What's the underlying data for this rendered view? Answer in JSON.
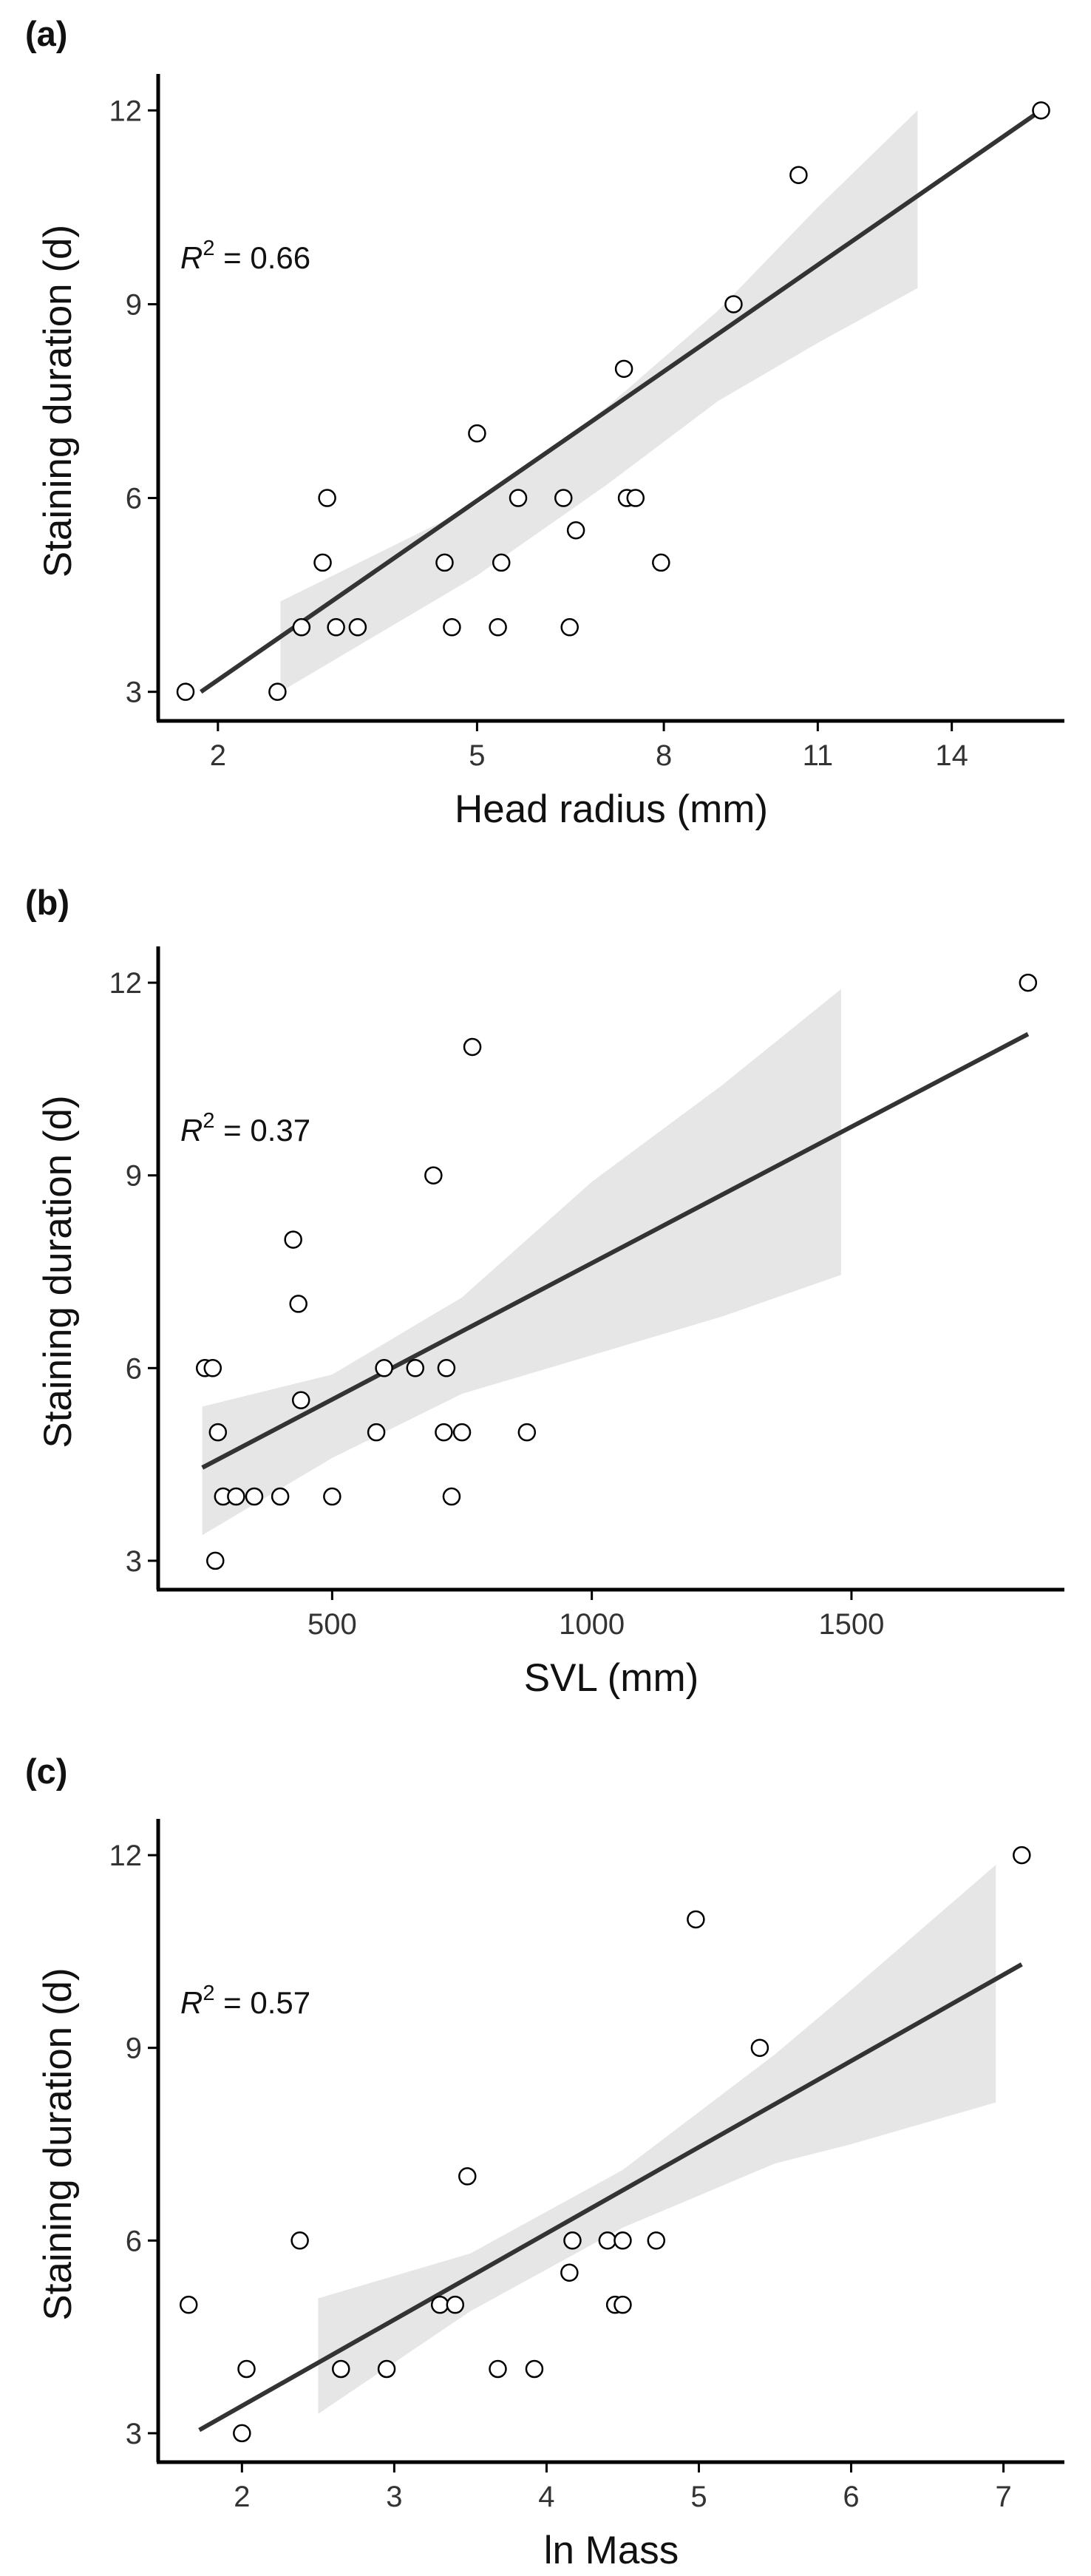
{
  "chart_data": [
    {
      "type": "scatter",
      "panel_label": "(a)",
      "xlabel": "Head radius (mm)",
      "ylabel": "Staining duration (d)",
      "x_scale": "sqrt",
      "xlim": [
        1.5,
        16.8
      ],
      "ylim": [
        2.55,
        12.45
      ],
      "xticks": [
        2,
        5,
        8,
        11,
        14
      ],
      "yticks": [
        3,
        6,
        9,
        12
      ],
      "annotation": {
        "r": "R",
        "sup": "2",
        "rest": " = 0.66"
      },
      "points": [
        {
          "x": 1.72,
          "y": 3
        },
        {
          "x": 2.57,
          "y": 3
        },
        {
          "x": 2.82,
          "y": 4
        },
        {
          "x": 3.05,
          "y": 5
        },
        {
          "x": 3.1,
          "y": 6
        },
        {
          "x": 3.2,
          "y": 4
        },
        {
          "x": 3.45,
          "y": 4
        },
        {
          "x": 4.55,
          "y": 5
        },
        {
          "x": 4.65,
          "y": 4
        },
        {
          "x": 5.0,
          "y": 7
        },
        {
          "x": 5.3,
          "y": 4
        },
        {
          "x": 5.35,
          "y": 5
        },
        {
          "x": 5.6,
          "y": 6
        },
        {
          "x": 6.3,
          "y": 6
        },
        {
          "x": 6.4,
          "y": 4
        },
        {
          "x": 6.5,
          "y": 5.5
        },
        {
          "x": 7.3,
          "y": 8
        },
        {
          "x": 7.35,
          "y": 6
        },
        {
          "x": 7.5,
          "y": 6
        },
        {
          "x": 7.95,
          "y": 5
        },
        {
          "x": 9.3,
          "y": 9
        },
        {
          "x": 10.6,
          "y": 11
        },
        {
          "x": 16.2,
          "y": 12
        }
      ],
      "fit": {
        "x": [
          1.85,
          16.2
        ],
        "y": [
          3.0,
          12.0
        ]
      },
      "ci_band": {
        "x": [
          2.6,
          5.0,
          7.0,
          9.0,
          11.0,
          13.2
        ],
        "lower": [
          3.0,
          4.8,
          6.2,
          7.5,
          8.4,
          9.25
        ],
        "upper": [
          4.4,
          5.9,
          7.4,
          8.9,
          10.5,
          12.0
        ]
      }
    },
    {
      "type": "scatter",
      "panel_label": "(b)",
      "xlabel": "SVL (mm)",
      "ylabel": "Staining duration (d)",
      "x_scale": "linear",
      "xlim": [
        165,
        1910
      ],
      "ylim": [
        2.55,
        12.45
      ],
      "xticks": [
        500,
        1000,
        1500
      ],
      "yticks": [
        3,
        6,
        9,
        12
      ],
      "annotation": {
        "r": "R",
        "sup": "2",
        "rest": " = 0.37"
      },
      "points": [
        {
          "x": 255,
          "y": 6
        },
        {
          "x": 270,
          "y": 6
        },
        {
          "x": 275,
          "y": 3
        },
        {
          "x": 280,
          "y": 5
        },
        {
          "x": 290,
          "y": 4
        },
        {
          "x": 315,
          "y": 4
        },
        {
          "x": 350,
          "y": 4
        },
        {
          "x": 400,
          "y": 4
        },
        {
          "x": 425,
          "y": 8
        },
        {
          "x": 435,
          "y": 7
        },
        {
          "x": 440,
          "y": 5.5
        },
        {
          "x": 500,
          "y": 4
        },
        {
          "x": 585,
          "y": 5
        },
        {
          "x": 600,
          "y": 6
        },
        {
          "x": 660,
          "y": 6
        },
        {
          "x": 695,
          "y": 9
        },
        {
          "x": 715,
          "y": 5
        },
        {
          "x": 720,
          "y": 6
        },
        {
          "x": 730,
          "y": 4
        },
        {
          "x": 750,
          "y": 5
        },
        {
          "x": 770,
          "y": 11
        },
        {
          "x": 875,
          "y": 5
        },
        {
          "x": 1840,
          "y": 12
        }
      ],
      "fit": {
        "x": [
          250,
          1840
        ],
        "y": [
          4.45,
          11.2
        ]
      },
      "ci_band": {
        "x": [
          250,
          500,
          750,
          1000,
          1250,
          1480
        ],
        "lower": [
          3.4,
          4.6,
          5.6,
          6.2,
          6.8,
          7.45
        ],
        "upper": [
          5.4,
          5.9,
          7.1,
          8.9,
          10.4,
          11.9
        ]
      }
    },
    {
      "type": "scatter",
      "panel_label": "(c)",
      "xlabel": "ln Mass",
      "ylabel": "Staining duration (d)",
      "x_scale": "linear",
      "xlim": [
        1.45,
        7.4
      ],
      "ylim": [
        2.55,
        12.45
      ],
      "xticks": [
        2,
        3,
        4,
        5,
        6,
        7
      ],
      "yticks": [
        3,
        6,
        9,
        12
      ],
      "annotation": {
        "r": "R",
        "sup": "2",
        "rest": " = 0.57"
      },
      "points": [
        {
          "x": 1.65,
          "y": 5
        },
        {
          "x": 2.0,
          "y": 3
        },
        {
          "x": 2.03,
          "y": 4
        },
        {
          "x": 2.38,
          "y": 6
        },
        {
          "x": 2.65,
          "y": 4
        },
        {
          "x": 2.95,
          "y": 4
        },
        {
          "x": 3.3,
          "y": 5
        },
        {
          "x": 3.4,
          "y": 5
        },
        {
          "x": 3.48,
          "y": 7
        },
        {
          "x": 3.68,
          "y": 4
        },
        {
          "x": 3.92,
          "y": 4
        },
        {
          "x": 4.15,
          "y": 5.5
        },
        {
          "x": 4.17,
          "y": 6
        },
        {
          "x": 4.4,
          "y": 6
        },
        {
          "x": 4.45,
          "y": 5
        },
        {
          "x": 4.5,
          "y": 5
        },
        {
          "x": 4.5,
          "y": 6
        },
        {
          "x": 4.72,
          "y": 6
        },
        {
          "x": 4.98,
          "y": 11
        },
        {
          "x": 5.4,
          "y": 9
        },
        {
          "x": 7.12,
          "y": 12
        }
      ],
      "fit": {
        "x": [
          1.72,
          7.12
        ],
        "y": [
          3.05,
          10.3
        ]
      },
      "ci_band": {
        "x": [
          2.5,
          3.5,
          4.5,
          5.5,
          6.0,
          6.95
        ],
        "lower": [
          3.3,
          4.9,
          6.2,
          7.2,
          7.5,
          8.15
        ],
        "upper": [
          5.1,
          5.8,
          7.1,
          8.9,
          9.9,
          11.85
        ]
      }
    }
  ]
}
